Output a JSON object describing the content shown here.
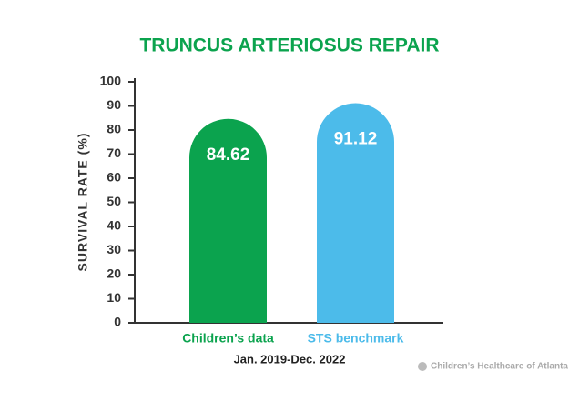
{
  "chart_data": {
    "type": "bar",
    "title": "TRUNCUS ARTERIOSUS REPAIR",
    "y_label": "SURVIVAL RATE (%)",
    "x_label": "Jan. 2019-Dec. 2022",
    "categories": [
      "Children’s data",
      "STS benchmark"
    ],
    "values": [
      84.62,
      91.12
    ],
    "colors": [
      "#0ba34e",
      "#4cbbea"
    ],
    "ylim": [
      0,
      100
    ],
    "yticks": [
      0,
      10,
      20,
      30,
      40,
      50,
      60,
      70,
      80,
      90,
      100
    ],
    "footer": "Children’s Healthcare of Atlanta"
  }
}
